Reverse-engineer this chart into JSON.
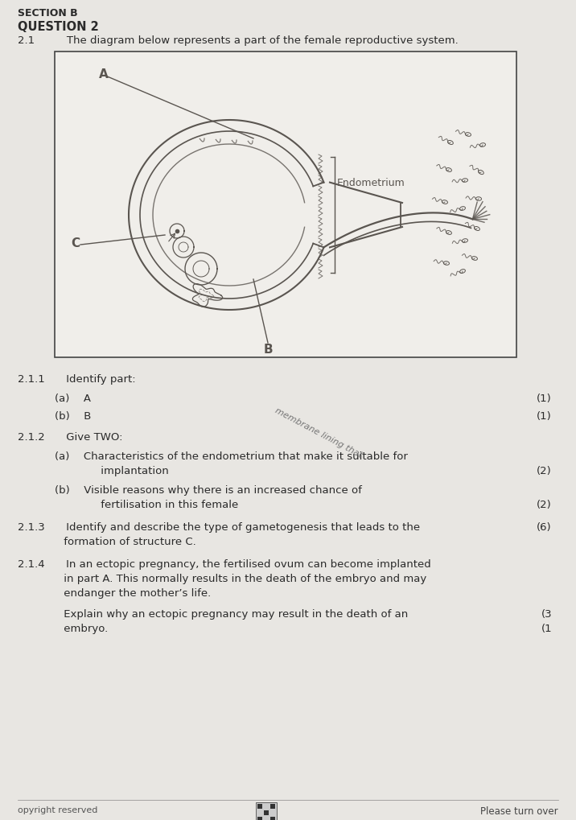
{
  "bg_color": "#e8e6e2",
  "box_bg": "#f0eeea",
  "diagram_color": "#5a5550",
  "text_color": "#2a2a2a",
  "section_b": "SECTION B",
  "question": "QUESTION 2",
  "q2_1_text": "2.1   The diagram below represents a part of the female reproductive system.",
  "label_A": "A",
  "label_B": "B",
  "label_C": "C",
  "label_endometrium": "Endometrium",
  "q211": "2.1.1  Identify part:",
  "q211a": "(a)  A",
  "q211b": "(b)  B",
  "q212": "2.1.2  Give TWO:",
  "q212a1": "(a)  Characteristics of the endometrium that make it suitable for",
  "q212a2": "     implantation",
  "q212b1": "(b)  Visible reasons why there is an increased chance of",
  "q212b2": "     fertilisation in this female",
  "q213_1": "2.1.3  Identify and describe the type of gametogenesis that leads to the",
  "q213_2": "     formation of structure C.",
  "q214_1": "2.1.4  In an ectopic pregnancy, the fertilised ovum can become implanted",
  "q214_2": "     in part A. This normally results in the death of the embryo and may",
  "q214_3": "     endanger the mother’s life.",
  "q214_4": "     Explain why an ectopic pregnancy may result in the death of an",
  "q214_5": "     embryo.",
  "m1": "(1)",
  "m2": "(2)",
  "m6": "(6)",
  "m3": "(3",
  "m1b": "(1",
  "footer_left": "opyright reserved",
  "footer_right": "Please turn over"
}
